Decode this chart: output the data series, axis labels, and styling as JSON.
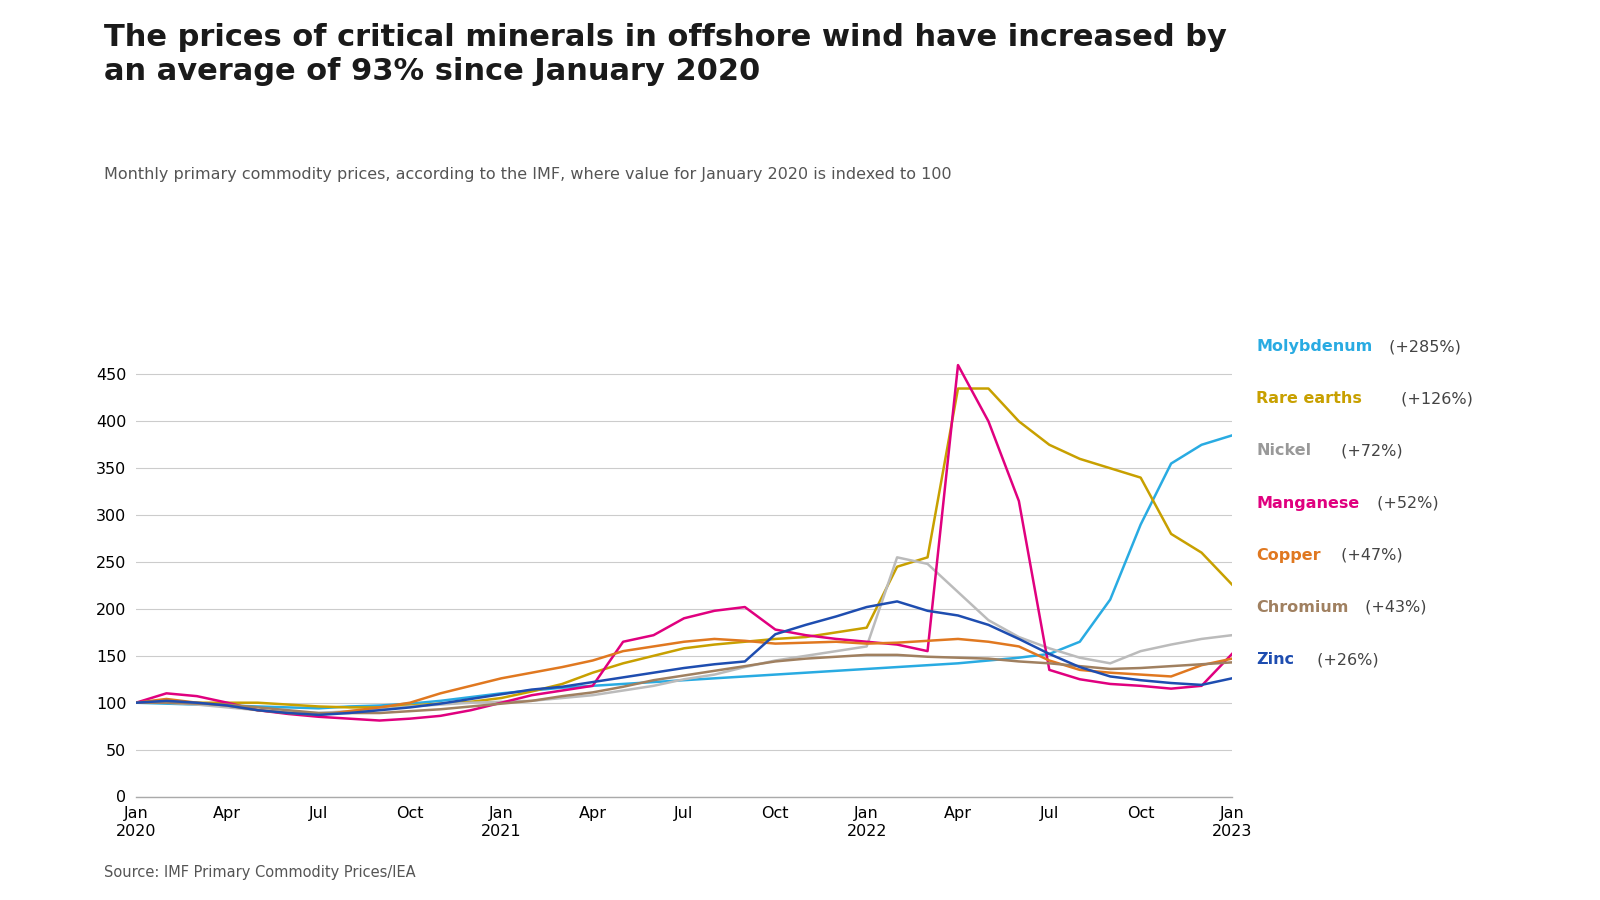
{
  "title": "The prices of critical minerals in offshore wind have increased by\nan average of 93% since January 2020",
  "subtitle": "Monthly primary commodity prices, according to the IMF, where value for January 2020 is indexed to 100",
  "source": "Source: IMF Primary Commodity Prices/IEA",
  "background_color": "#ffffff",
  "ylim": [
    0,
    475
  ],
  "yticks": [
    0,
    50,
    100,
    150,
    200,
    250,
    300,
    350,
    400,
    450
  ],
  "xtick_labels": [
    "Jan\n2020",
    "Apr",
    "Jul",
    "Oct",
    "Jan\n2021",
    "Apr",
    "Jul",
    "Oct",
    "Jan\n2022",
    "Apr",
    "Jul",
    "Oct",
    "Jan\n2023"
  ],
  "xtick_positions": [
    0,
    3,
    6,
    9,
    12,
    15,
    18,
    21,
    24,
    27,
    30,
    33,
    36
  ],
  "series": {
    "Molybdenum": {
      "color": "#29ABE2",
      "name_color": "#29ABE2",
      "pct": "+285%",
      "values": [
        100,
        99,
        98,
        97,
        96,
        95,
        94,
        96,
        97,
        99,
        102,
        106,
        110,
        113,
        116,
        118,
        120,
        122,
        124,
        126,
        128,
        130,
        132,
        134,
        136,
        138,
        140,
        142,
        145,
        148,
        152,
        165,
        210,
        290,
        355,
        375,
        385
      ]
    },
    "Rare earths": {
      "color": "#C8A000",
      "name_color": "#C8A000",
      "pct": "+126%",
      "values": [
        100,
        100,
        100,
        100,
        100,
        98,
        96,
        95,
        95,
        97,
        99,
        101,
        105,
        112,
        120,
        132,
        142,
        150,
        158,
        162,
        165,
        168,
        170,
        175,
        180,
        245,
        255,
        435,
        435,
        400,
        375,
        360,
        350,
        340,
        280,
        260,
        226
      ]
    },
    "Nickel": {
      "color": "#BBBBBB",
      "name_color": "#999999",
      "pct": "+72%",
      "values": [
        100,
        100,
        98,
        95,
        92,
        90,
        89,
        91,
        93,
        96,
        98,
        100,
        101,
        102,
        105,
        108,
        113,
        118,
        125,
        130,
        138,
        145,
        150,
        155,
        160,
        255,
        248,
        218,
        188,
        170,
        158,
        148,
        142,
        155,
        162,
        168,
        172
      ]
    },
    "Manganese": {
      "color": "#E0007F",
      "name_color": "#E0007F",
      "pct": "+52%",
      "values": [
        100,
        110,
        107,
        100,
        92,
        88,
        85,
        83,
        81,
        83,
        86,
        92,
        100,
        108,
        113,
        118,
        165,
        172,
        190,
        198,
        202,
        178,
        172,
        168,
        165,
        162,
        155,
        460,
        400,
        315,
        135,
        125,
        120,
        118,
        115,
        118,
        152
      ]
    },
    "Copper": {
      "color": "#E07820",
      "name_color": "#E07820",
      "pct": "+47%",
      "values": [
        100,
        104,
        100,
        97,
        92,
        89,
        87,
        91,
        95,
        100,
        110,
        118,
        126,
        132,
        138,
        145,
        155,
        160,
        165,
        168,
        166,
        163,
        164,
        165,
        163,
        164,
        166,
        168,
        165,
        160,
        145,
        135,
        132,
        130,
        128,
        140,
        147
      ]
    },
    "Chromium": {
      "color": "#A08060",
      "name_color": "#A08060",
      "pct": "+43%",
      "values": [
        100,
        100,
        99,
        98,
        95,
        92,
        89,
        89,
        89,
        91,
        93,
        96,
        99,
        102,
        107,
        111,
        117,
        124,
        129,
        134,
        139,
        144,
        147,
        149,
        151,
        151,
        149,
        148,
        147,
        144,
        142,
        139,
        136,
        137,
        139,
        141,
        143
      ]
    },
    "Zinc": {
      "color": "#1E4DB0",
      "name_color": "#1E4DB0",
      "pct": "+26%",
      "values": [
        100,
        102,
        100,
        97,
        92,
        89,
        87,
        89,
        92,
        95,
        99,
        104,
        109,
        114,
        117,
        122,
        127,
        132,
        137,
        141,
        144,
        173,
        183,
        192,
        202,
        208,
        198,
        193,
        183,
        168,
        152,
        138,
        128,
        124,
        121,
        119,
        126
      ]
    }
  }
}
